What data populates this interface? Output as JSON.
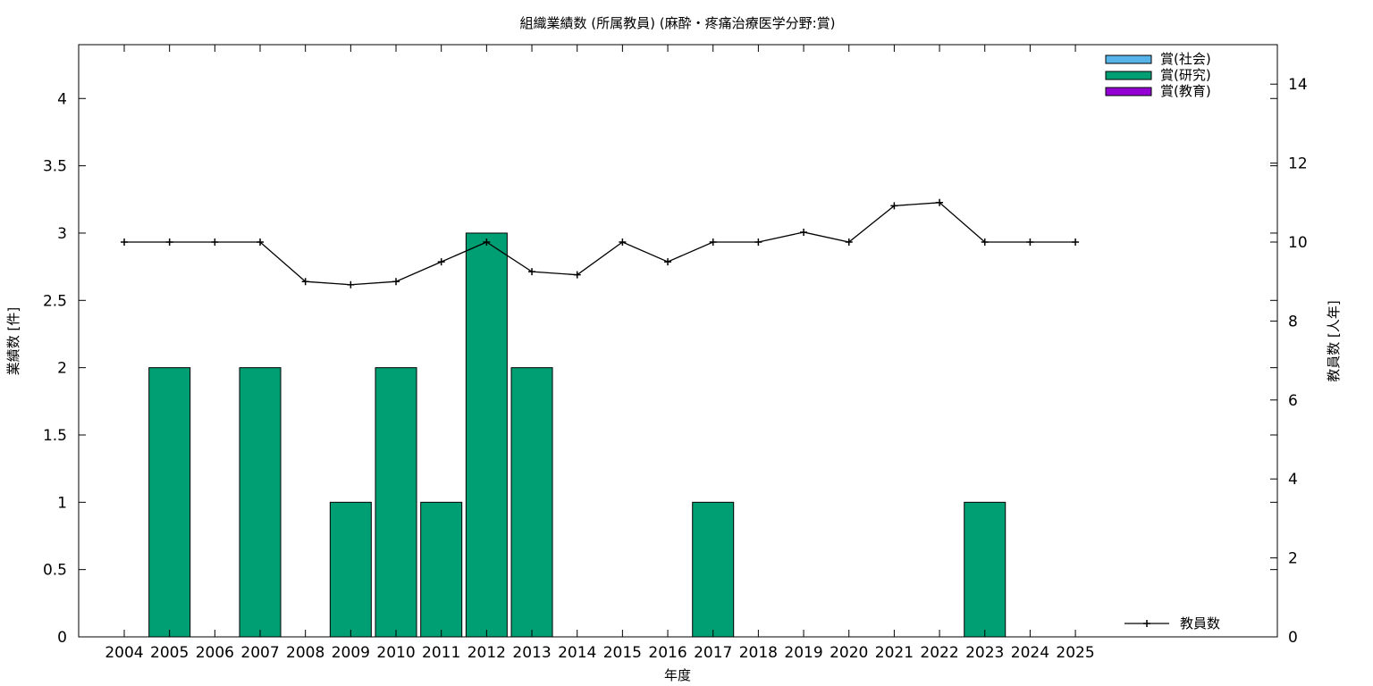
{
  "chart_data": {
    "type": "bar",
    "title": "組織業績数 (所属教員) (麻酔・疼痛治療医学分野:賞)",
    "xlabel": "年度",
    "ylabel": "業績数 [件]",
    "y2label": "教員数 [人年]",
    "categories": [
      "2004",
      "2005",
      "2006",
      "2007",
      "2008",
      "2009",
      "2010",
      "2011",
      "2012",
      "2013",
      "2014",
      "2015",
      "2016",
      "2017",
      "2018",
      "2019",
      "2020",
      "2021",
      "2022",
      "2023",
      "2024",
      "2025"
    ],
    "ylim": [
      0,
      4.4
    ],
    "y2lim": [
      0,
      15
    ],
    "yticks": [
      "0",
      "0.5",
      "1",
      "1.5",
      "2",
      "2.5",
      "3",
      "3.5",
      "4"
    ],
    "y2ticks": [
      "0",
      "2",
      "4",
      "6",
      "8",
      "10",
      "12",
      "14"
    ],
    "series": [
      {
        "name": "賞(社会)",
        "color": "#56b4e9",
        "values": [
          0,
          0,
          0,
          0,
          0,
          0,
          0,
          0,
          0,
          0,
          0,
          0,
          0,
          0,
          0,
          0,
          0,
          0,
          0,
          0,
          0,
          0
        ]
      },
      {
        "name": "賞(研究)",
        "color": "#009e73",
        "values": [
          0,
          2,
          0,
          2,
          0,
          1,
          2,
          1,
          3,
          2,
          0,
          0,
          0,
          1,
          0,
          0,
          0,
          0,
          0,
          1,
          0,
          0
        ]
      },
      {
        "name": "賞(教育)",
        "color": "#9400d3",
        "values": [
          0,
          0,
          0,
          0,
          0,
          0,
          0,
          0,
          0,
          0,
          0,
          0,
          0,
          0,
          0,
          0,
          0,
          0,
          0,
          0,
          0,
          0
        ]
      }
    ],
    "line_series": {
      "name": "教員数",
      "color": "#000000",
      "axis": "right",
      "values": [
        10,
        10,
        10,
        10,
        9,
        8.92,
        9,
        9.5,
        10,
        9.25,
        9.17,
        10,
        9.5,
        10,
        10,
        10.25,
        10,
        10.92,
        11,
        10,
        10,
        10
      ]
    },
    "legend_placement": "top-right",
    "line_legend_placement": "bottom-right",
    "grid": false
  }
}
